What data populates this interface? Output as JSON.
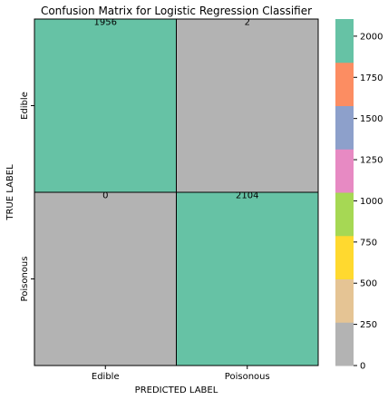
{
  "chart_data": {
    "type": "heatmap",
    "title": "Confusion Matrix for Logistic Regression Classifier",
    "xlabel": "PREDICTED LABEL",
    "ylabel": "TRUE LABEL",
    "x_categories": [
      "Edible",
      "Poisonous"
    ],
    "y_categories": [
      "Edible",
      "Poisonous"
    ],
    "values": [
      [
        1956,
        2
      ],
      [
        0,
        2104
      ]
    ],
    "annotations": [
      [
        "1956",
        "2"
      ],
      [
        "0",
        "2104"
      ]
    ],
    "colorbar": {
      "range": [
        0,
        2104
      ],
      "ticks": [
        0,
        250,
        500,
        750,
        1000,
        1250,
        1500,
        1750,
        2000
      ],
      "colormap": "Set2",
      "colors": [
        "#b3b3b3",
        "#e5c494",
        "#ffd92f",
        "#a6d854",
        "#e78ac3",
        "#8da0cb",
        "#fc8d62",
        "#66c2a5"
      ]
    }
  }
}
